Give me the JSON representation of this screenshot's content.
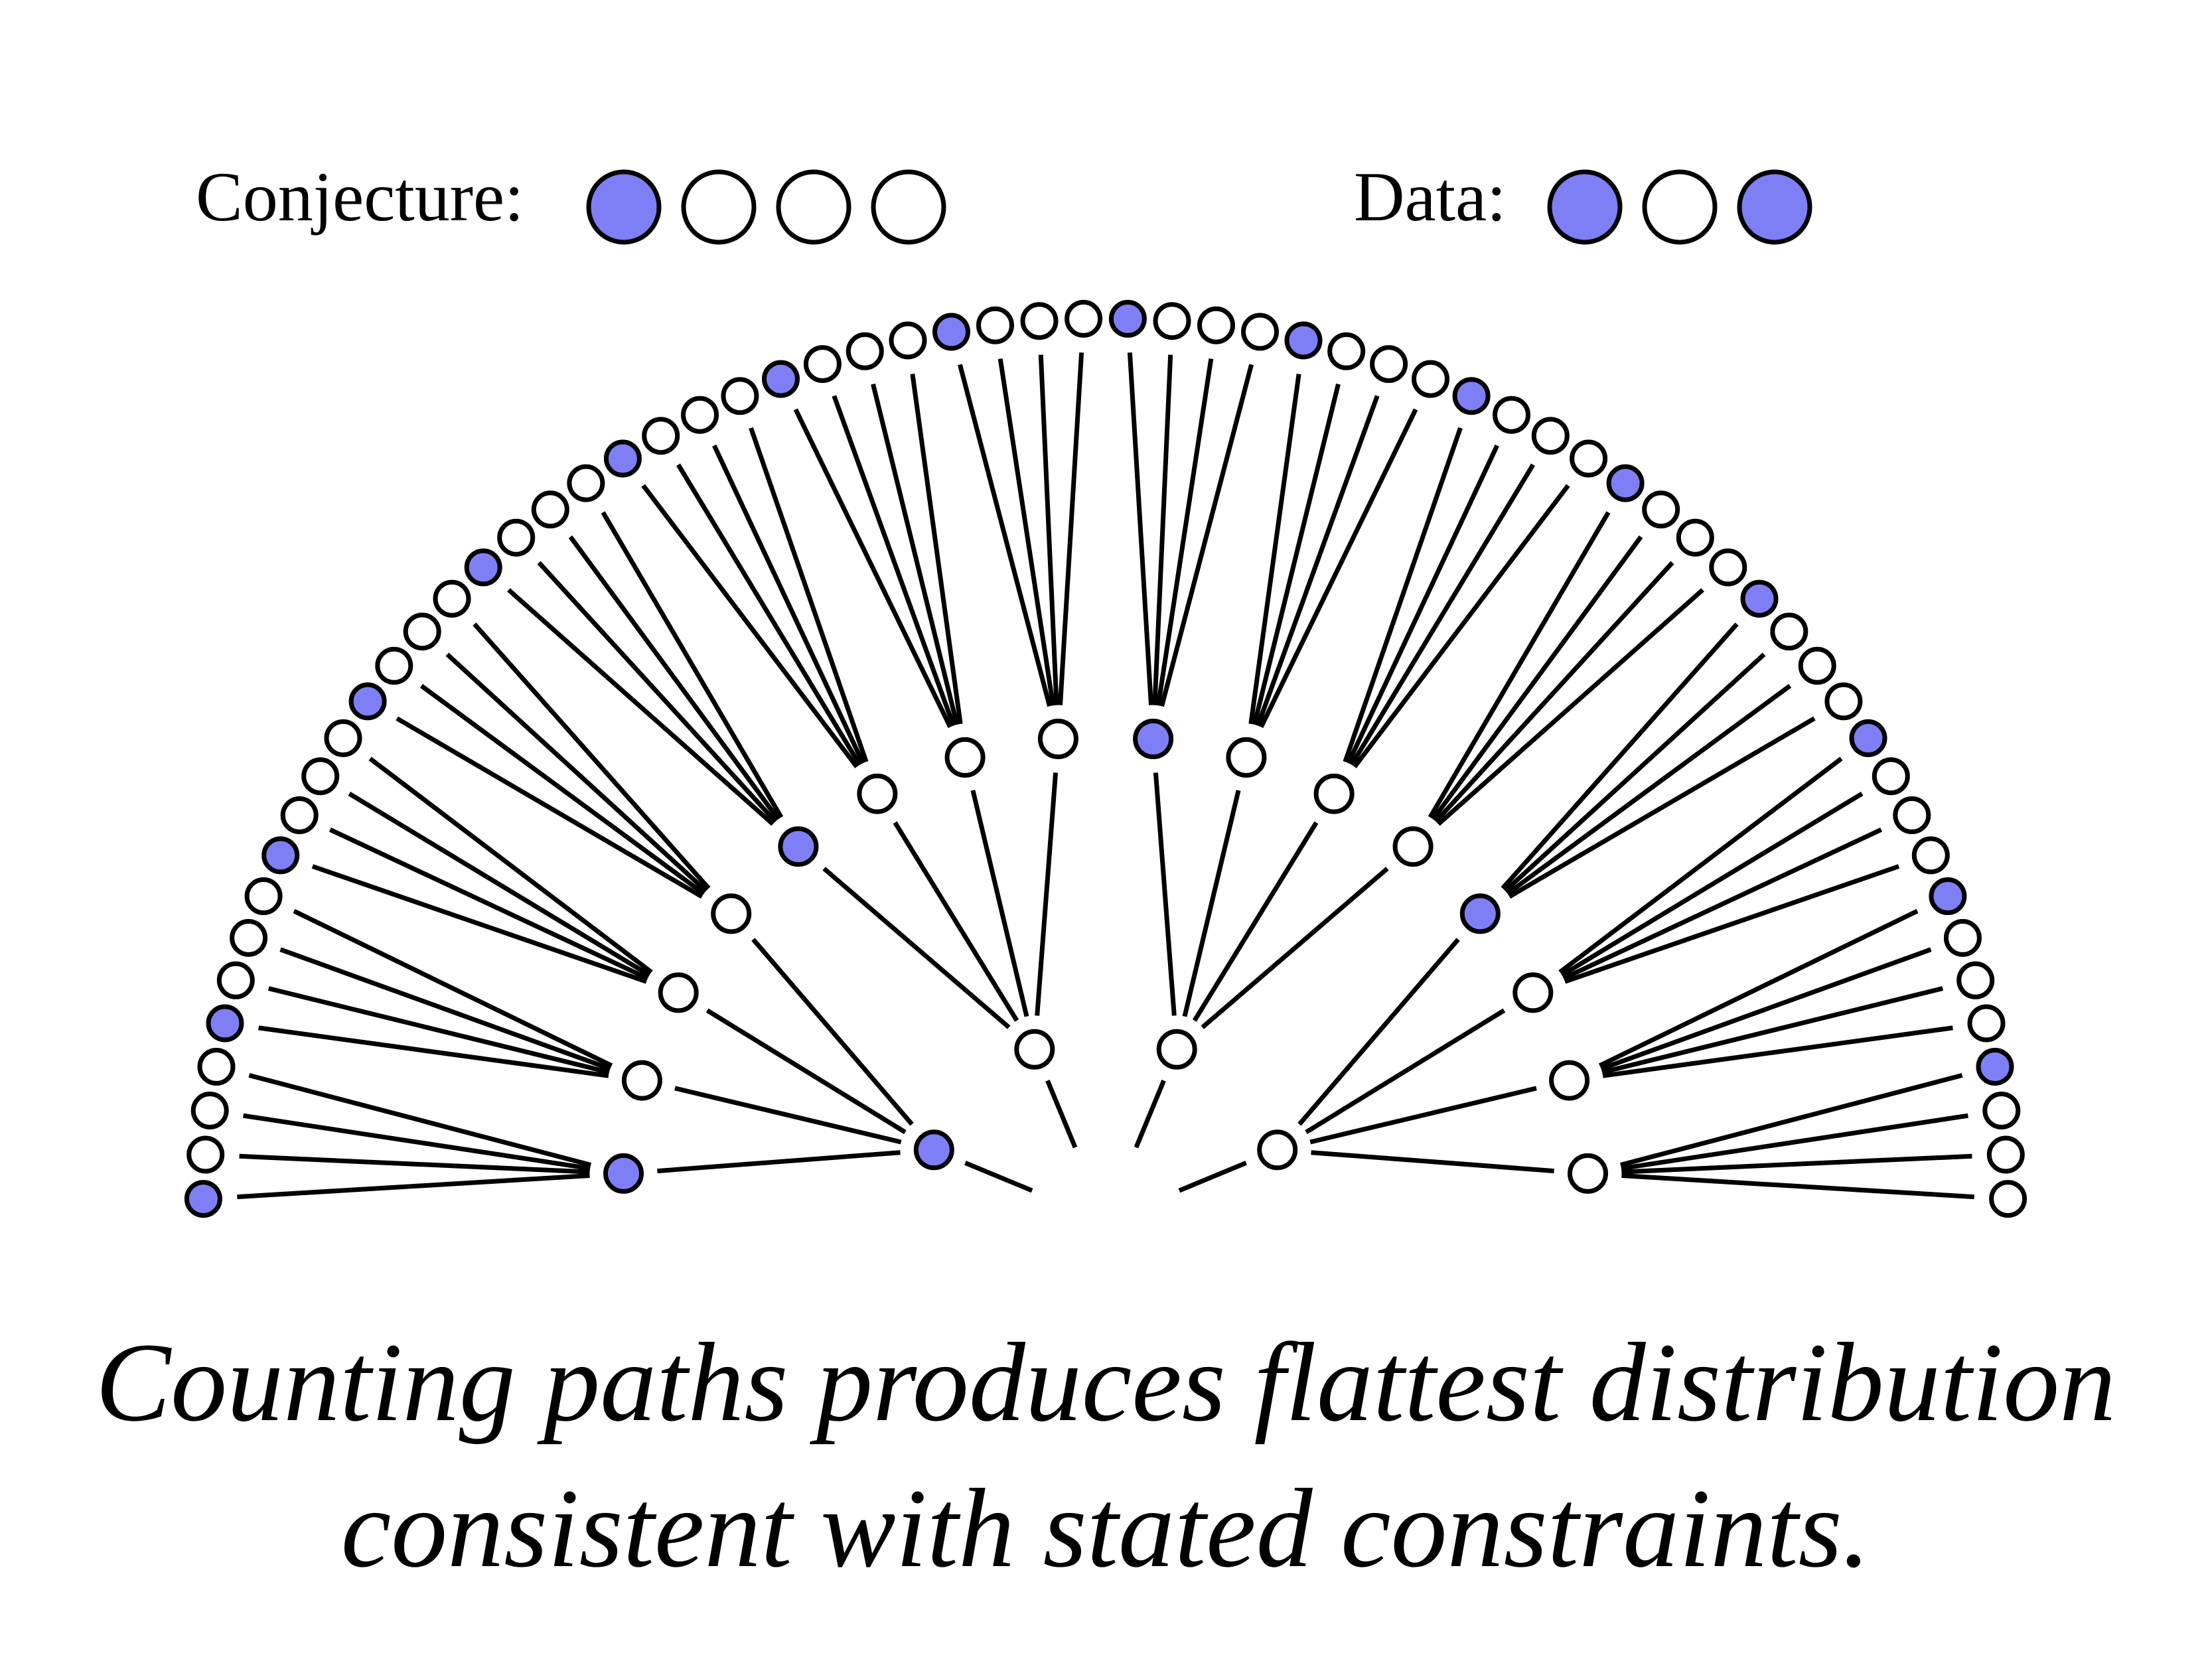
{
  "legend": {
    "conjecture": {
      "label": "Conjecture:",
      "marbles": [
        "blue",
        "white",
        "white",
        "white"
      ]
    },
    "data": {
      "label": "Data:",
      "marbles": [
        "blue",
        "white",
        "blue"
      ]
    }
  },
  "tree": {
    "conjecture": [
      "blue",
      "white",
      "white",
      "white"
    ],
    "levels": 3
  },
  "caption": {
    "line1": "Counting paths produces flattest distribution",
    "line2": "consistent with stated constraints."
  },
  "colors": {
    "blue": "#7f7ff5",
    "white": "#ffffff",
    "stroke": "#000000",
    "background": "#ffffff"
  }
}
